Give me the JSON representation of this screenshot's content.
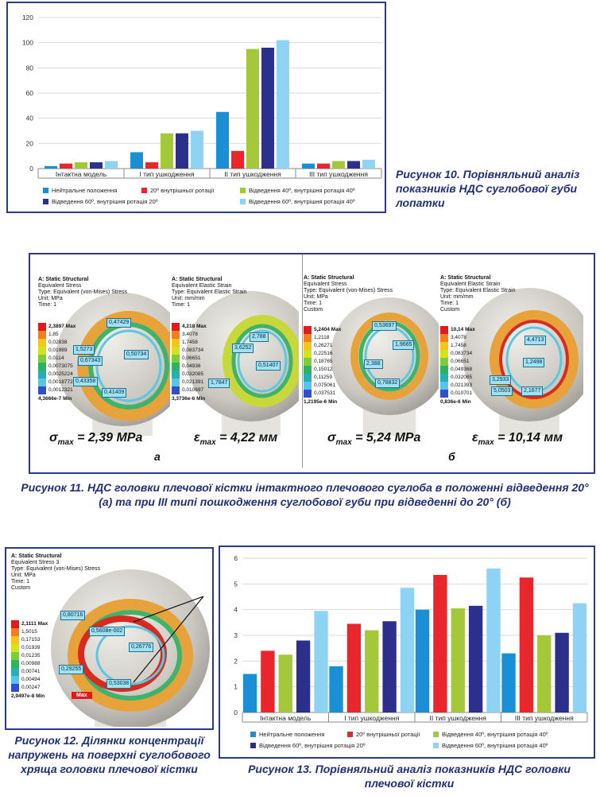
{
  "figure10": {
    "caption": "Рисунок 10. Порівняльний аналіз показників НДС суглобової губи лопатки",
    "chart_data": {
      "type": "bar",
      "categories": [
        "Інтактна модель",
        "І тип ушкодження",
        "ІІ тип ушкодження",
        "ІІІ тип ушкодження"
      ],
      "ylim": [
        0,
        120
      ],
      "yticks": [
        0,
        20,
        40,
        60,
        80,
        100,
        120
      ],
      "series": [
        {
          "name": "Нейтральне положення",
          "color": "#1a8fd6",
          "values": [
            2,
            13,
            45,
            4
          ]
        },
        {
          "name": "20º внутрішньої ротації",
          "color": "#e8262b",
          "values": [
            4,
            5,
            14,
            4
          ]
        },
        {
          "name": "Відведення 40º, внутрішня ротація 40º",
          "color": "#a3c93a",
          "values": [
            5,
            28,
            95,
            6
          ]
        },
        {
          "name": "Відведення 60º, внутрішня ротація 20º",
          "color": "#2c2f8c",
          "values": [
            5,
            28,
            96,
            6
          ]
        },
        {
          "name": "Відведення 60º, внутрішня ротація 40º",
          "color": "#8fd3f4",
          "values": [
            6,
            30,
            102,
            7
          ]
        }
      ]
    }
  },
  "figure11": {
    "caption_line1": "Рисунок 11. НДС головки плечової кістки інтактного плечового суглоба в положенні відведення 20°",
    "caption_line2": "(а) та при ІІІ типі пошкодження суглобової губи при відведенні до 20° (б)",
    "part_a": "а",
    "part_b": "б",
    "panels": [
      {
        "title": "A: Static Structural",
        "lines": [
          "Equivalent Stress",
          "Type: Equivalent (von-Mises) Stress",
          "Unit: MPa",
          "Time: 1"
        ],
        "scale": [
          "2,3897 Max",
          "1,85",
          "0,02838",
          "0,01989",
          "0,0114",
          "0,0073075",
          "0,0025224",
          "0,0018772",
          "0,0012321"
        ],
        "min": "4,3666e-7 Min",
        "probes": [
          "0,47429",
          "1,5273",
          "0,67343",
          "0,50734",
          "0,43358",
          "0,41409"
        ],
        "formula_sym": "σ",
        "formula_sub": "max",
        "formula_val": "= 2,39 MPa"
      },
      {
        "title": "A: Static Structural",
        "lines": [
          "Equivalent Elastic Strain",
          "Type: Equivalent Elastic Strain",
          "Unit: mm/mm",
          "Time: 1"
        ],
        "scale": [
          "4,218 Max",
          "3,4078",
          "1,7458",
          "0,083734",
          "0,06651",
          "0,04936",
          "0,032085",
          "0,021391",
          "0,010697"
        ],
        "min": "3,3736e-6 Min",
        "probes": [
          "3,6252",
          "2,788",
          "0,51407",
          "1,7847"
        ],
        "formula_sym": "ε",
        "formula_sub": "max",
        "formula_val": "= 4,22 мм"
      },
      {
        "title": "A: Static Structural",
        "lines": [
          "Equivalent Stress",
          "Type: Equivalent (von-Mises) Stress",
          "Unit: MPa",
          "Time: 1",
          "Custom"
        ],
        "scale": [
          "5,2404 Max",
          "1,2118",
          "0,26271",
          "0,22516",
          "0,18765",
          "0,15012",
          "0,11259",
          "0,075061",
          "0,037531"
        ],
        "min": "1,2195e-6 Min",
        "probes": [
          "0,53697",
          "1,9665",
          "2,388",
          "0,78832"
        ],
        "formula_sym": "σ",
        "formula_sub": "max",
        "formula_val": "= 5,24 MPa"
      },
      {
        "title": "A: Static Structural",
        "lines": [
          "Equivalent Elastic Strain",
          "Type: Equivalent Elastic Strain",
          "Unit: mm/mm",
          "Time: 1",
          "Custom"
        ],
        "scale": [
          "10,14 Max",
          "3,4078",
          "1,7458",
          "0,083734",
          "0,06651",
          "0,049368",
          "0,032085",
          "0,021393",
          "0,010701"
        ],
        "min": "0,836e-6 Min",
        "probes": [
          "4,4713",
          "1,2498",
          "3,2933",
          "5,0503",
          "2,1677"
        ],
        "formula_sym": "ε",
        "formula_sub": "max",
        "formula_val": "= 10,14 мм"
      }
    ]
  },
  "figure12": {
    "caption": "Рисунок 12. Ділянки концентрації напружень на поверхні суглобового хряща головки плечової кістки",
    "title": "A: Static Structural",
    "lines": [
      "Equivalent Stress 3",
      "Type: Equivalent (von-Mises) Stress",
      "Unit: MPa",
      "Time: 1",
      "Custom"
    ],
    "scale": [
      "2,1111 Max",
      "1,5015",
      "0,17153",
      "0,01939",
      "0,01235",
      "0,00988",
      "0,00741",
      "0,00494",
      "0,00247"
    ],
    "min": "2,9497e-8 Min",
    "probes": [
      "0,80716",
      "0,5608e-002",
      "0,26776",
      "0,29255",
      "0,53038"
    ],
    "max_tag": "Max"
  },
  "figure13": {
    "caption": "Рисунок 13. Порівняльний аналіз показників НДС головки плечової кістки",
    "chart_data": {
      "type": "bar",
      "categories": [
        "Інтактна модель",
        "І тип ушкодження",
        "ІІ тип ушкодження",
        "ІІІ тип ушкодження"
      ],
      "ylim": [
        0,
        6
      ],
      "yticks": [
        0,
        1,
        2,
        3,
        4,
        5,
        6
      ],
      "series": [
        {
          "name": "Нейтральне положення",
          "color": "#1a8fd6",
          "values": [
            1.5,
            1.8,
            4.0,
            2.3
          ]
        },
        {
          "name": "20º внутрішньої ротації",
          "color": "#e8262b",
          "values": [
            2.4,
            3.45,
            5.35,
            5.25
          ]
        },
        {
          "name": "Відведення 40º, внутрішня ротація 40º",
          "color": "#a3c93a",
          "values": [
            2.25,
            3.2,
            4.05,
            3.0
          ]
        },
        {
          "name": "Відведення 60º, внутрішня ротація 20º",
          "color": "#2c2f8c",
          "values": [
            2.8,
            3.55,
            4.15,
            3.1
          ]
        },
        {
          "name": "Відведення 60º, внутрішня ротація 40º",
          "color": "#8fd3f4",
          "values": [
            3.95,
            4.85,
            5.6,
            4.25
          ]
        }
      ]
    }
  },
  "colors": {
    "frame": "#2a3a8a",
    "caption": "#1f2f7a",
    "scale": [
      "#e31a1c",
      "#f07f20",
      "#f5c518",
      "#d6e21c",
      "#7ccd3b",
      "#2db35c",
      "#24b0b4",
      "#58c5e8",
      "#2f4fcf"
    ]
  }
}
